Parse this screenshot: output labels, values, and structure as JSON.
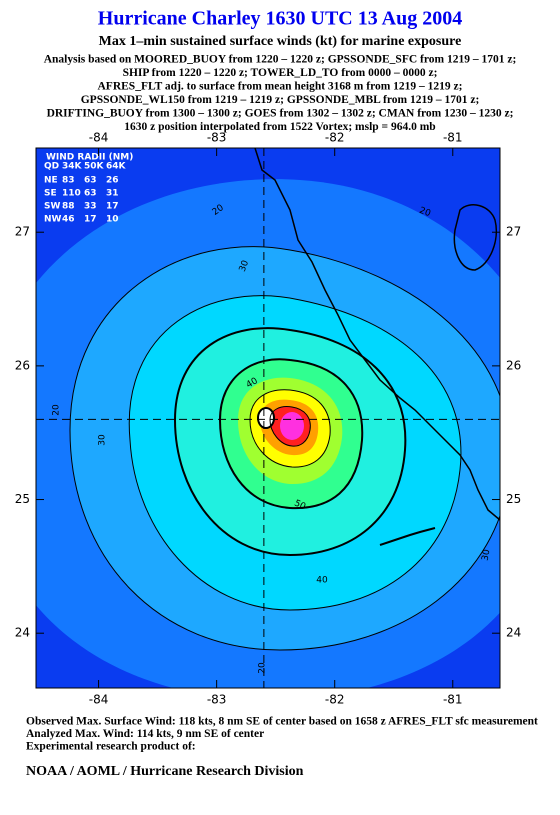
{
  "chart_data": {
    "type": "contour-map",
    "title": "Hurricane Charley 1630 UTC 13 Aug 2004",
    "subtitle": "Max 1–min sustained surface winds (kt) for marine exposure",
    "analysis_lines": [
      "Analysis based on  MOORED_BUOY from 1220 – 1220 z;  GPSSONDE_SFC from 1219 – 1701 z;",
      "SHIP from 1220 – 1220 z;  TOWER_LD_TO from 0000 – 0000 z;",
      "AFRES_FLT adj. to surface from mean height 3168 m from 1219 – 1219 z;",
      "GPSSONDE_WL150 from 1219 – 1219 z;  GPSSONDE_MBL from 1219 – 1701 z;",
      "DRIFTING_BUOY from 1300 – 1300 z;  GOES from 1302 – 1302 z;  CMAN from 1230 – 1230 z;",
      "1630 z position interpolated from 1522 Vortex; mslp = 964.0 mb"
    ],
    "xlim": [
      -84.53,
      -80.6
    ],
    "ylim": [
      23.59,
      27.63
    ],
    "xticks": [
      -84,
      -83,
      -82,
      -81
    ],
    "yticks": [
      24,
      25,
      26,
      27
    ],
    "center": {
      "lon": -82.6,
      "lat": 25.6
    },
    "contour_labels": [
      20,
      30,
      20,
      40,
      20,
      30,
      50,
      40,
      30,
      20
    ],
    "wind_radii": {
      "title": "WIND RADII (NM)",
      "columns": [
        "QD",
        "34K",
        "50K",
        "64K"
      ],
      "rows": [
        [
          "NE",
          83,
          63,
          26
        ],
        [
          "SE",
          110,
          63,
          31
        ],
        [
          "SW",
          88,
          33,
          17
        ],
        [
          "NW",
          46,
          17,
          10
        ]
      ]
    },
    "footer_lines": [
      "Observed Max. Surface Wind: 118 kts, 8 nm SE of center based on 1658 z AFRES_FLT sfc measurement",
      "Analyzed Max. Wind: 114 kts, 9 nm SE of center",
      "Experimental research product of:"
    ],
    "credit": "NOAA / AOML / Hurricane Research Division"
  }
}
